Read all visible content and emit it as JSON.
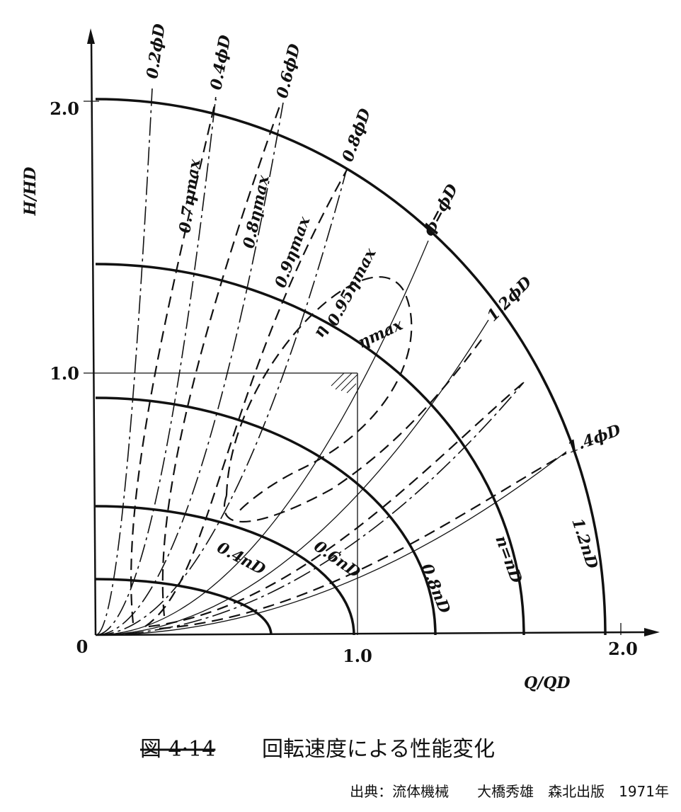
{
  "axes": {
    "y_label": "H/HD",
    "x_label": "Q/QD",
    "origin": "0",
    "y_ticks": [
      "1.0",
      "2.0"
    ],
    "x_ticks": [
      "1.0",
      "2.0"
    ]
  },
  "flow_curves": [
    "0.2ϕD",
    "0.4ϕD",
    "0.6ϕD",
    "0.8ϕD",
    "ϕ=ϕD",
    "1.2ϕD",
    "1.4ϕD"
  ],
  "efficiency_curves": [
    "0.7ηmax",
    "0.8ηmax",
    "0.9ηmax",
    "0.95ηmax",
    "η",
    "ηmax"
  ],
  "speed_curves": [
    "0.4nD",
    "0.6nD",
    "0.8nD",
    "n=nD",
    "1.2nD"
  ],
  "caption": {
    "figure": "図 4·14",
    "title": "回転速度による性能変化"
  },
  "source": "出典：流体機械　　大橋秀雄　森北出版　1971年"
}
